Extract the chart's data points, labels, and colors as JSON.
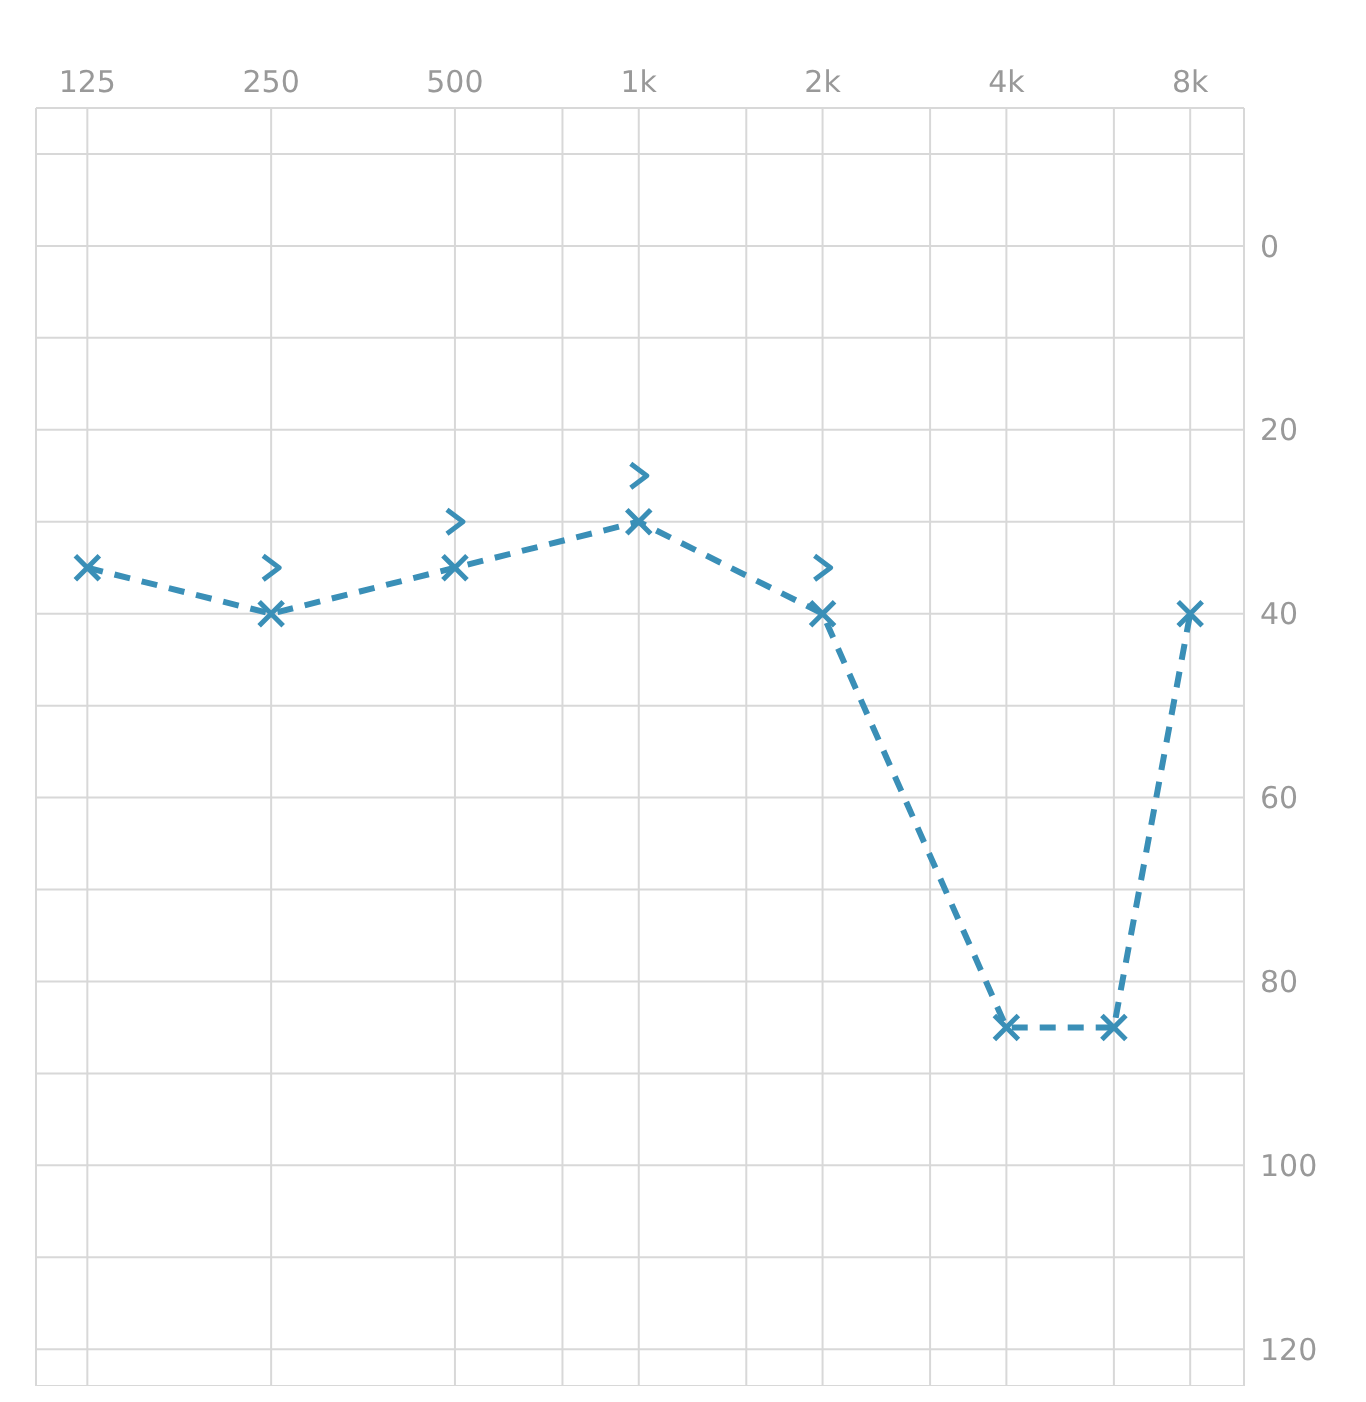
{
  "chart_data": {
    "type": "line",
    "x": [
      125,
      250,
      500,
      1000,
      2000,
      4000,
      6000,
      8000
    ],
    "series": [
      {
        "color": "#3a8fb7",
        "values": [
          35,
          40,
          35,
          30,
          40,
          85,
          85,
          40
        ],
        "marker": "cross",
        "line_style": "dashed"
      },
      {
        "type": "scatter",
        "color": "#3a8fb7",
        "x": [
          250,
          500,
          1000,
          2000
        ],
        "values": [
          35,
          30,
          25,
          35
        ]
      }
    ],
    "log": "x",
    "xlim": [
      103,
      9800
    ],
    "xticks": [
      125,
      250,
      500,
      {
        "value": 750,
        "label": null
      },
      {
        "value": 1000,
        "label": "1k"
      },
      {
        "value": 1500,
        "label": null
      },
      {
        "value": 2000,
        "label": "2k"
      },
      {
        "value": 3000,
        "label": null
      },
      {
        "value": 4000,
        "label": "4k"
      },
      {
        "value": 6000,
        "label": null
      },
      {
        "value": 8000,
        "label": "8k"
      }
    ],
    "ylim": [
      124,
      -15
    ],
    "yticks": [
      {
        "value": -10,
        "label": null
      },
      0,
      {
        "value": 10,
        "label": null
      },
      20,
      {
        "value": 30,
        "label": null
      },
      40,
      {
        "value": 50,
        "label": null
      },
      60,
      {
        "value": 70,
        "label": null
      },
      80,
      {
        "value": 90,
        "label": null
      },
      100,
      {
        "value": 110,
        "label": null
      },
      120
    ],
    "grid": true
  }
}
